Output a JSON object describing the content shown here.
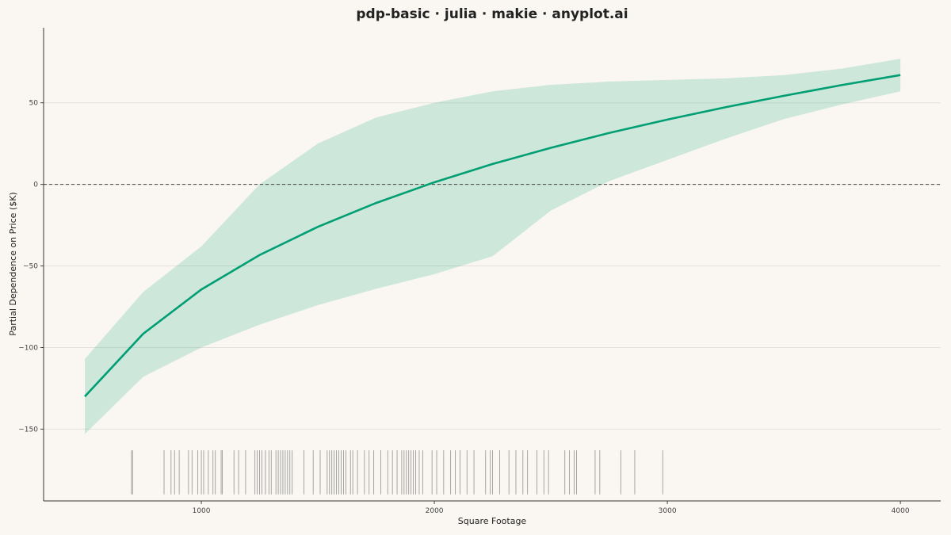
{
  "chart_data": {
    "type": "line",
    "title": "pdp-basic · julia · makie · anyplot.ai",
    "x_label": "Square Footage",
    "y_label": "Partial Dependence on Price ($K)",
    "x": [
      500,
      750,
      1000,
      1250,
      1500,
      1750,
      2000,
      2250,
      2500,
      2750,
      3000,
      3250,
      3500,
      3750,
      4000
    ],
    "series": [
      {
        "color": "#009e73",
        "values": [
          -130,
          -91.6,
          -64.4,
          -43.3,
          -26.0,
          -11.4,
          1.3,
          12.5,
          22.4,
          31.5,
          39.7,
          47.3,
          54.3,
          60.9,
          67
        ]
      }
    ],
    "band": {
      "color": "#009e73",
      "opacity": 0.18,
      "lower": [
        -153,
        -118,
        -100,
        -86,
        -74,
        -64,
        -55,
        -44,
        -16,
        2,
        15,
        28,
        40,
        49,
        57
      ],
      "upper": [
        -107,
        -66,
        -38,
        0,
        25,
        41,
        50,
        57,
        61,
        63,
        64,
        65,
        67,
        71,
        77
      ]
    },
    "rug": {
      "color": "#777777",
      "ylim": [
        -190,
        -163
      ],
      "values": [
        700,
        705,
        840,
        870,
        885,
        905,
        945,
        960,
        985,
        1000,
        1010,
        1030,
        1050,
        1060,
        1085,
        1090,
        1140,
        1160,
        1190,
        1230,
        1240,
        1250,
        1260,
        1275,
        1290,
        1300,
        1320,
        1330,
        1340,
        1350,
        1360,
        1370,
        1380,
        1390,
        1440,
        1480,
        1510,
        1540,
        1550,
        1560,
        1570,
        1580,
        1590,
        1600,
        1610,
        1620,
        1640,
        1650,
        1670,
        1700,
        1720,
        1740,
        1770,
        1800,
        1820,
        1840,
        1860,
        1870,
        1880,
        1890,
        1900,
        1910,
        1920,
        1935,
        1950,
        1990,
        2010,
        2040,
        2070,
        2090,
        2110,
        2140,
        2170,
        2220,
        2240,
        2250,
        2280,
        2320,
        2350,
        2380,
        2400,
        2440,
        2470,
        2490,
        2560,
        2580,
        2600,
        2610,
        2690,
        2710,
        2800,
        2860,
        2980
      ]
    },
    "hline": {
      "value": 0,
      "style": "dashed"
    },
    "xlim": [
      323,
      4173
    ],
    "ylim": [
      -194,
      96
    ],
    "xticks": [
      1000,
      2000,
      3000,
      4000
    ],
    "yticks": [
      {
        "value": -150,
        "label": "−150"
      },
      {
        "value": -100,
        "label": "−100"
      },
      {
        "value": -50,
        "label": "−50"
      },
      0,
      50
    ],
    "grid": true
  }
}
